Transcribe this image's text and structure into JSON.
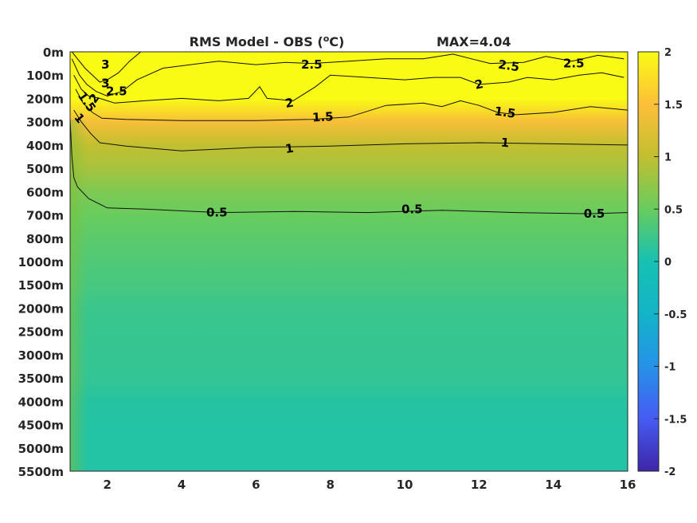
{
  "chart_data": {
    "type": "heatmap",
    "title": "RMS Model - OBS (",
    "title_unit_sup": "o",
    "title_unit_suffix": "C)",
    "max_label": "MAX=4.04",
    "x_ticks": [
      2,
      4,
      6,
      8,
      10,
      12,
      14,
      16
    ],
    "xlim": [
      1,
      16
    ],
    "y_levels": [
      "0m",
      "100m",
      "200m",
      "300m",
      "400m",
      "500m",
      "600m",
      "700m",
      "800m",
      "1000m",
      "1500m",
      "2000m",
      "2500m",
      "3000m",
      "3500m",
      "4000m",
      "4500m",
      "5000m",
      "5500m"
    ],
    "colorbar": {
      "min": -2,
      "max": 2,
      "ticks": [
        "2",
        "1.5",
        "1",
        "0.5",
        "0",
        "-0.5",
        "-1",
        "-1.5",
        "-2"
      ],
      "colormap": "parula"
    },
    "value_profile": [
      {
        "level": 0,
        "value": 2.9
      },
      {
        "level": 1,
        "value": 2.6
      },
      {
        "level": 2,
        "value": 2.0
      },
      {
        "level": 3,
        "value": 1.45
      },
      {
        "level": 4,
        "value": 1.0
      },
      {
        "level": 5,
        "value": 0.85
      },
      {
        "level": 6,
        "value": 0.62
      },
      {
        "level": 7,
        "value": 0.5
      },
      {
        "level": 8,
        "value": 0.42
      },
      {
        "level": 9,
        "value": 0.36
      },
      {
        "level": 10,
        "value": 0.3
      },
      {
        "level": 11,
        "value": 0.22
      },
      {
        "level": 12,
        "value": 0.2
      },
      {
        "level": 13,
        "value": 0.19
      },
      {
        "level": 14,
        "value": 0.18
      },
      {
        "level": 15,
        "value": 0.1
      },
      {
        "level": 16,
        "value": 0.08
      },
      {
        "level": 17,
        "value": 0.08
      },
      {
        "level": 18,
        "value": 0.08
      }
    ],
    "contours": [
      {
        "label": "3",
        "points": [
          [
            1.05,
            0.0
          ],
          [
            1.2,
            0.3
          ],
          [
            1.4,
            0.7
          ],
          [
            1.6,
            1.0
          ],
          [
            1.8,
            1.3
          ],
          [
            2.0,
            1.2
          ],
          [
            2.3,
            0.9
          ],
          [
            2.6,
            0.4
          ],
          [
            2.9,
            0.0
          ]
        ]
      },
      {
        "label": "2.5",
        "points": [
          [
            1.05,
            0.3
          ],
          [
            1.25,
            1.0
          ],
          [
            1.45,
            1.4
          ],
          [
            1.7,
            1.7
          ],
          [
            2.0,
            1.9
          ],
          [
            2.4,
            1.7
          ],
          [
            2.8,
            1.2
          ],
          [
            3.5,
            0.7
          ],
          [
            5,
            0.4
          ],
          [
            6,
            0.55
          ],
          [
            6.8,
            0.45
          ],
          [
            7.5,
            0.5
          ],
          [
            8.5,
            0.4
          ],
          [
            9.5,
            0.3
          ],
          [
            10.5,
            0.3
          ],
          [
            11.3,
            0.1
          ],
          [
            11.8,
            0.3
          ],
          [
            12.3,
            0.5
          ],
          [
            13.2,
            0.45
          ],
          [
            13.8,
            0.2
          ],
          [
            14.5,
            0.4
          ],
          [
            15.2,
            0.15
          ],
          [
            15.9,
            0.3
          ]
        ]
      },
      {
        "label": "2",
        "points": [
          [
            1.1,
            1.0
          ],
          [
            1.3,
            1.6
          ],
          [
            1.5,
            1.9
          ],
          [
            1.8,
            2.0
          ],
          [
            2.2,
            2.2
          ],
          [
            3,
            2.1
          ],
          [
            4,
            2.0
          ],
          [
            5,
            2.1
          ],
          [
            5.8,
            2.0
          ],
          [
            6.1,
            1.5
          ],
          [
            6.3,
            2.0
          ],
          [
            7,
            2.1
          ],
          [
            7.6,
            1.5
          ],
          [
            8,
            1.0
          ],
          [
            9,
            1.1
          ],
          [
            10,
            1.2
          ],
          [
            10.8,
            1.1
          ],
          [
            11.5,
            1.1
          ],
          [
            12,
            1.4
          ],
          [
            12.8,
            1.3
          ],
          [
            13.3,
            1.1
          ],
          [
            14,
            1.2
          ],
          [
            14.7,
            1.0
          ],
          [
            15.3,
            0.9
          ],
          [
            15.9,
            1.1
          ]
        ]
      },
      {
        "label": "1.5",
        "points": [
          [
            1.15,
            1.6
          ],
          [
            1.35,
            2.2
          ],
          [
            1.6,
            2.6
          ],
          [
            1.85,
            2.85
          ],
          [
            2.5,
            2.9
          ],
          [
            4,
            2.95
          ],
          [
            6,
            2.95
          ],
          [
            7.5,
            2.9
          ],
          [
            8.5,
            2.8
          ],
          [
            9.5,
            2.3
          ],
          [
            10.5,
            2.2
          ],
          [
            11,
            2.35
          ],
          [
            11.5,
            2.1
          ],
          [
            12,
            2.3
          ],
          [
            12.5,
            2.6
          ],
          [
            13,
            2.7
          ],
          [
            14,
            2.6
          ],
          [
            15,
            2.35
          ],
          [
            16,
            2.5
          ]
        ]
      },
      {
        "label": "1",
        "points": [
          [
            1.1,
            2.5
          ],
          [
            1.3,
            3.0
          ],
          [
            1.55,
            3.5
          ],
          [
            1.8,
            3.9
          ],
          [
            2.5,
            4.05
          ],
          [
            4,
            4.25
          ],
          [
            6,
            4.1
          ],
          [
            8,
            4.05
          ],
          [
            10,
            3.95
          ],
          [
            12,
            3.9
          ],
          [
            14,
            3.95
          ],
          [
            16,
            4.0
          ]
        ]
      },
      {
        "label": "0.5",
        "points": [
          [
            1.0,
            2.9
          ],
          [
            1.05,
            4.5
          ],
          [
            1.1,
            5.4
          ],
          [
            1.2,
            5.8
          ],
          [
            1.5,
            6.3
          ],
          [
            2,
            6.7
          ],
          [
            3,
            6.75
          ],
          [
            5,
            6.9
          ],
          [
            7,
            6.85
          ],
          [
            9,
            6.9
          ],
          [
            11,
            6.8
          ],
          [
            13,
            6.9
          ],
          [
            15,
            6.95
          ],
          [
            16,
            6.9
          ]
        ]
      }
    ],
    "contour_labels": [
      {
        "text": "3",
        "x": 1.95,
        "y": 0.55,
        "rot": 0
      },
      {
        "text": "3",
        "x": 1.95,
        "y": 1.35,
        "rot": 0
      },
      {
        "text": "2.5",
        "x": 2.25,
        "y": 1.7,
        "rot": 0
      },
      {
        "text": "2",
        "x": 1.65,
        "y": 2.0,
        "rot": -55
      },
      {
        "text": "1.5",
        "x": 1.45,
        "y": 2.15,
        "rot": 55
      },
      {
        "text": "1",
        "x": 1.25,
        "y": 2.85,
        "rot": 50
      },
      {
        "text": "2.5",
        "x": 7.5,
        "y": 0.55,
        "rot": 0
      },
      {
        "text": "2.5",
        "x": 12.8,
        "y": 0.6,
        "rot": 8
      },
      {
        "text": "2.5",
        "x": 14.55,
        "y": 0.5,
        "rot": 0
      },
      {
        "text": "2",
        "x": 6.9,
        "y": 2.2,
        "rot": -10
      },
      {
        "text": "2",
        "x": 12.0,
        "y": 1.4,
        "rot": -12
      },
      {
        "text": "1.5",
        "x": 7.8,
        "y": 2.8,
        "rot": -3
      },
      {
        "text": "1.5",
        "x": 12.7,
        "y": 2.6,
        "rot": 8
      },
      {
        "text": "1",
        "x": 6.9,
        "y": 4.15,
        "rot": -8
      },
      {
        "text": "1",
        "x": 12.7,
        "y": 3.9,
        "rot": 5
      },
      {
        "text": "0.5",
        "x": 4.95,
        "y": 6.9,
        "rot": 0
      },
      {
        "text": "0.5",
        "x": 10.2,
        "y": 6.75,
        "rot": 0
      },
      {
        "text": "0.5",
        "x": 15.1,
        "y": 6.95,
        "rot": 0
      }
    ]
  }
}
